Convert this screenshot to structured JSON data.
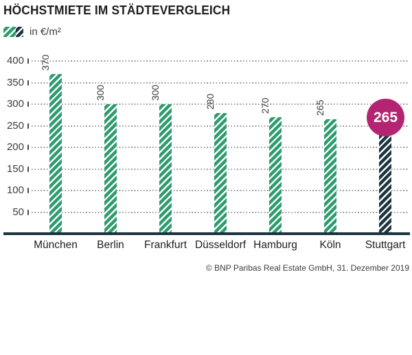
{
  "title": "HÖCHSTMIETE IM STÄDTEVERGLEICH",
  "legend": {
    "label": "in €/m²"
  },
  "source": "© BNP Paribas Real Estate GmbH, 31. Dezember 2019",
  "colors": {
    "green": "#2E9C6E",
    "dark": "#1E3540",
    "magenta": "#B32572",
    "baseline": "#1B333D",
    "grid_dot": "#9A9A9A",
    "tick": "#454545",
    "axis_text": "#3C3C3C",
    "title_text": "#1D1D1B"
  },
  "chart_data": {
    "type": "bar",
    "title": "HÖCHSTMIETE IM STÄDTEVERGLEICH",
    "unit_label": "in €/m²",
    "categories": [
      "München",
      "Berlin",
      "Frankfurt",
      "Düsseldorf",
      "Hamburg",
      "Köln",
      "Stuttgart"
    ],
    "values": [
      370,
      300,
      300,
      280,
      270,
      265,
      265
    ],
    "highlight_index": 6,
    "highlight_label": "265",
    "yticks": [
      400,
      350,
      300,
      250,
      200,
      150,
      100,
      50
    ],
    "ylim": [
      0,
      400
    ],
    "grid": "horizontal-dotted",
    "legend_position": "top-left",
    "value_label_rotation": -90,
    "source": "© BNP Paribas Real Estate GmbH, 31. Dezember 2019"
  }
}
